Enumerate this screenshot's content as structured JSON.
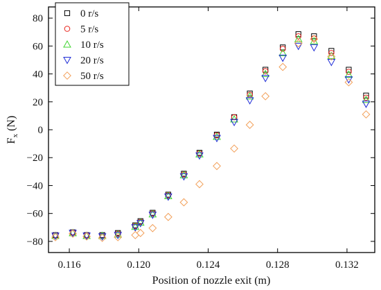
{
  "chart_data": {
    "type": "scatter",
    "xlabel": "Position of nozzle exit (m)",
    "ylabel": "Fx (N)",
    "ylabel_main": "F",
    "ylabel_sub": "x",
    "ylabel_unit": " (N)",
    "xlim": [
      0.1148,
      0.1336
    ],
    "ylim": [
      -88,
      88
    ],
    "x_ticks": [
      0.116,
      0.12,
      0.124,
      0.128,
      0.132
    ],
    "x_tick_labels": [
      "0.116",
      "0.120",
      "0.124",
      "0.128",
      "0.132"
    ],
    "y_ticks": [
      -80,
      -60,
      -40,
      -20,
      0,
      20,
      40,
      60,
      80
    ],
    "y_tick_labels": [
      "−80",
      "−60",
      "−40",
      "−20",
      "0",
      "20",
      "40",
      "60",
      "80"
    ],
    "legend_position": "top-left",
    "series": [
      {
        "name": "0 r/s",
        "marker": "square",
        "color": "#000000",
        "points": [
          [
            0.1152,
            -75.5
          ],
          [
            0.1162,
            -73.5
          ],
          [
            0.117,
            -75.5
          ],
          [
            0.1179,
            -75.5
          ],
          [
            0.1188,
            -74
          ],
          [
            0.1198,
            -68.5
          ],
          [
            0.1201,
            -65.5
          ],
          [
            0.1208,
            -59.5
          ],
          [
            0.1217,
            -46.5
          ],
          [
            0.1226,
            -31.5
          ],
          [
            0.1235,
            -16.5
          ],
          [
            0.1245,
            -3.5
          ],
          [
            0.1255,
            9
          ],
          [
            0.1264,
            26
          ],
          [
            0.1273,
            43
          ],
          [
            0.1283,
            59
          ],
          [
            0.1292,
            68.5
          ],
          [
            0.1301,
            67
          ],
          [
            0.1311,
            56.5
          ],
          [
            0.1321,
            43
          ],
          [
            0.1331,
            24.5
          ]
        ]
      },
      {
        "name": "5 r/s",
        "marker": "circle",
        "color": "#e8221a",
        "points": [
          [
            0.1152,
            -75.5
          ],
          [
            0.1162,
            -73.5
          ],
          [
            0.117,
            -75.5
          ],
          [
            0.1179,
            -76
          ],
          [
            0.1188,
            -74.5
          ],
          [
            0.1198,
            -69
          ],
          [
            0.1201,
            -66
          ],
          [
            0.1208,
            -60
          ],
          [
            0.1217,
            -47
          ],
          [
            0.1226,
            -32
          ],
          [
            0.1235,
            -17
          ],
          [
            0.1245,
            -4
          ],
          [
            0.1255,
            9
          ],
          [
            0.1264,
            25
          ],
          [
            0.1273,
            42
          ],
          [
            0.1283,
            58
          ],
          [
            0.1292,
            67
          ],
          [
            0.1301,
            65.5
          ],
          [
            0.1311,
            55
          ],
          [
            0.1321,
            41.5
          ],
          [
            0.1331,
            23
          ]
        ]
      },
      {
        "name": "10 r/s",
        "marker": "triangle-up",
        "color": "#3fd42f",
        "points": [
          [
            0.1152,
            -76
          ],
          [
            0.1162,
            -74
          ],
          [
            0.117,
            -76
          ],
          [
            0.1179,
            -76
          ],
          [
            0.1188,
            -75
          ],
          [
            0.1198,
            -69.5
          ],
          [
            0.1201,
            -66.5
          ],
          [
            0.1208,
            -60.5
          ],
          [
            0.1217,
            -47.5
          ],
          [
            0.1226,
            -32.5
          ],
          [
            0.1235,
            -17.5
          ],
          [
            0.1245,
            -5
          ],
          [
            0.1255,
            7.5
          ],
          [
            0.1264,
            24
          ],
          [
            0.1273,
            40
          ],
          [
            0.1283,
            55
          ],
          [
            0.1292,
            65
          ],
          [
            0.1301,
            63.5
          ],
          [
            0.1311,
            53
          ],
          [
            0.1321,
            39.5
          ],
          [
            0.1331,
            21.5
          ]
        ]
      },
      {
        "name": "20 r/s",
        "marker": "triangle-down",
        "color": "#1d2bd6",
        "points": [
          [
            0.1152,
            -76
          ],
          [
            0.1162,
            -74
          ],
          [
            0.117,
            -76
          ],
          [
            0.1179,
            -76.5
          ],
          [
            0.1188,
            -75.5
          ],
          [
            0.1198,
            -70
          ],
          [
            0.1201,
            -67
          ],
          [
            0.1208,
            -61
          ],
          [
            0.1217,
            -48
          ],
          [
            0.1226,
            -33.5
          ],
          [
            0.1235,
            -18.5
          ],
          [
            0.1245,
            -6
          ],
          [
            0.1255,
            5.5
          ],
          [
            0.1264,
            21
          ],
          [
            0.1273,
            37
          ],
          [
            0.1283,
            51.5
          ],
          [
            0.1292,
            60
          ],
          [
            0.1301,
            59
          ],
          [
            0.1311,
            48.5
          ],
          [
            0.1321,
            36
          ],
          [
            0.1331,
            18.5
          ]
        ]
      },
      {
        "name": "50 r/s",
        "marker": "diamond",
        "color": "#f2a05a",
        "points": [
          [
            0.1152,
            -77
          ],
          [
            0.1162,
            -74.5
          ],
          [
            0.117,
            -76.5
          ],
          [
            0.1179,
            -77.5
          ],
          [
            0.1188,
            -77
          ],
          [
            0.1198,
            -75.5
          ],
          [
            0.1201,
            -74
          ],
          [
            0.1208,
            -70.5
          ],
          [
            0.1217,
            -62.5
          ],
          [
            0.1226,
            -52
          ],
          [
            0.1235,
            -39
          ],
          [
            0.1245,
            -26
          ],
          [
            0.1255,
            -13.5
          ],
          [
            0.1264,
            3.5
          ],
          [
            0.1273,
            24
          ],
          [
            0.1283,
            45
          ],
          [
            0.1292,
            62
          ],
          [
            0.1301,
            65
          ],
          [
            0.1311,
            52.5
          ],
          [
            0.1321,
            34
          ],
          [
            0.1331,
            11
          ]
        ]
      }
    ]
  }
}
